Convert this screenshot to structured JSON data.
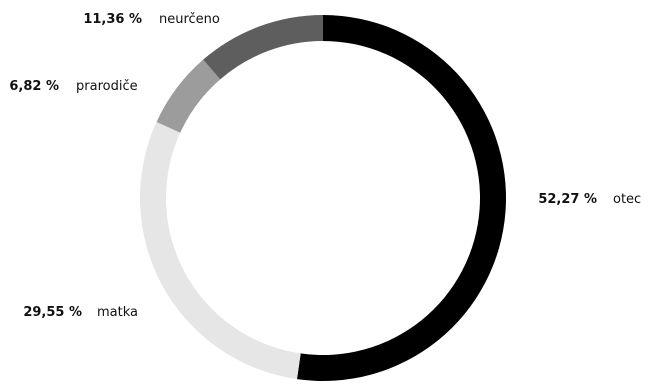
{
  "chart_data": {
    "type": "pie",
    "variant": "donut",
    "slices": [
      {
        "label": "otec",
        "value": 52.27,
        "value_text": "52,27 %",
        "color": "#000000"
      },
      {
        "label": "matka",
        "value": 29.55,
        "value_text": "29,55 %",
        "color": "#e6e6e6"
      },
      {
        "label": "prarodiče",
        "value": 6.82,
        "value_text": "6,82 %",
        "color": "#9c9c9c"
      },
      {
        "label": "neurčeno",
        "value": 11.36,
        "value_text": "11,36 %",
        "color": "#5e5e5e"
      }
    ]
  }
}
